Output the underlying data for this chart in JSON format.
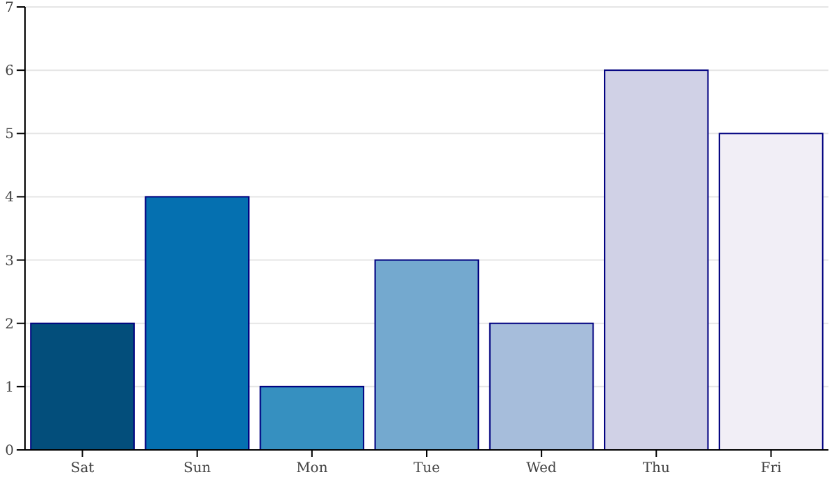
{
  "chart_data": {
    "type": "bar",
    "categories": [
      "Sat",
      "Sun",
      "Mon",
      "Tue",
      "Wed",
      "Thu",
      "Fri"
    ],
    "values": [
      2,
      4,
      1,
      3,
      2,
      6,
      5
    ],
    "colors": [
      "#034e7b",
      "#0570b0",
      "#3690c0",
      "#74a9cf",
      "#a6bddb",
      "#d0d1e6",
      "#f1eef6"
    ],
    "ylim": [
      0,
      7
    ],
    "yticks": [
      0,
      1,
      2,
      3,
      4,
      5,
      6,
      7
    ],
    "grid": "y"
  }
}
